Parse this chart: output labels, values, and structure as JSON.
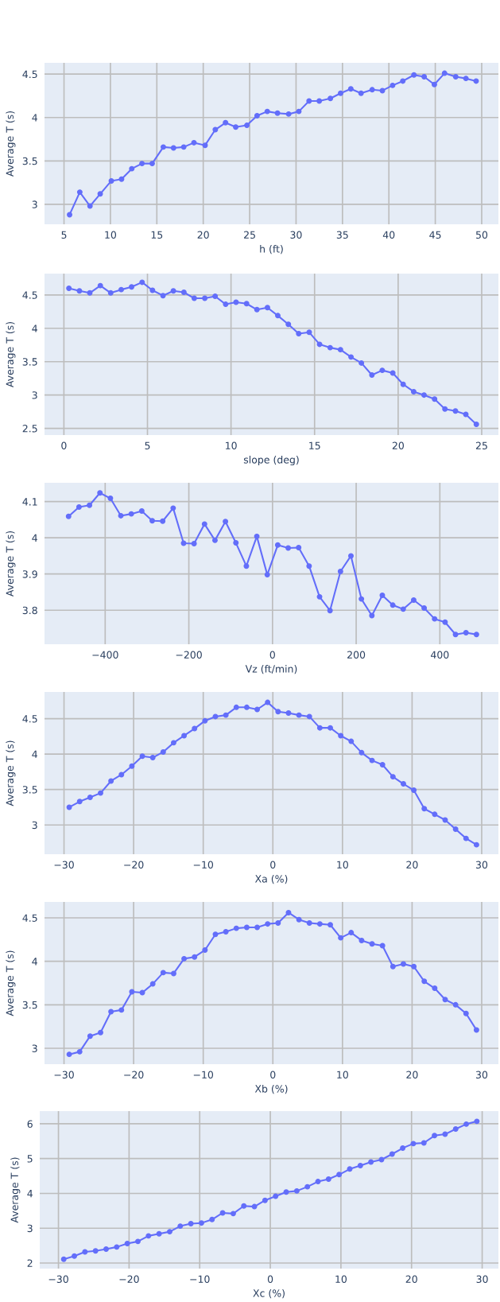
{
  "chart_data": [
    {
      "type": "line",
      "xlabel": "h (ft)",
      "ylabel": "Average T (s)",
      "marker": "circle",
      "line_style": "solid",
      "grid": true,
      "legend": false,
      "xlim": [
        2.9,
        51.8
      ],
      "ylim": [
        2.77,
        4.63
      ],
      "xticks": [
        5,
        10,
        15,
        20,
        25,
        30,
        35,
        40,
        45,
        50
      ],
      "yticks": [
        3,
        3.5,
        4,
        4.5
      ],
      "series": [
        {
          "color": "#636efa",
          "x": [
            5.6,
            6.7,
            7.8,
            8.9,
            10.1,
            11.2,
            12.3,
            13.4,
            14.5,
            15.7,
            16.8,
            17.9,
            19.0,
            20.2,
            21.3,
            22.4,
            23.5,
            24.7,
            25.8,
            26.9,
            28.0,
            29.2,
            30.3,
            31.4,
            32.5,
            33.7,
            34.8,
            35.9,
            37.0,
            38.2,
            39.3,
            40.4,
            41.5,
            42.7,
            43.8,
            44.9,
            46.0,
            47.2,
            48.3,
            49.4
          ],
          "values": [
            2.88,
            3.14,
            2.98,
            3.12,
            3.27,
            3.29,
            3.41,
            3.47,
            3.47,
            3.66,
            3.65,
            3.66,
            3.71,
            3.68,
            3.86,
            3.94,
            3.89,
            3.91,
            4.02,
            4.07,
            4.05,
            4.04,
            4.07,
            4.19,
            4.19,
            4.22,
            4.28,
            4.33,
            4.28,
            4.32,
            4.31,
            4.37,
            4.42,
            4.49,
            4.47,
            4.38,
            4.51,
            4.47,
            4.45,
            4.42
          ]
        }
      ]
    },
    {
      "type": "line",
      "xlabel": "slope (deg)",
      "ylabel": "Average T (s)",
      "marker": "circle",
      "line_style": "solid",
      "grid": true,
      "legend": false,
      "xlim": [
        -1.16,
        26.0
      ],
      "ylim": [
        2.4,
        4.82
      ],
      "xticks": [
        0,
        5,
        10,
        15,
        20,
        25
      ],
      "yticks": [
        2.5,
        3,
        3.5,
        4,
        4.5
      ],
      "series": [
        {
          "color": "#636efa",
          "x": [
            0.3,
            0.93,
            1.55,
            2.18,
            2.8,
            3.43,
            4.05,
            4.68,
            5.3,
            5.93,
            6.55,
            7.18,
            7.8,
            8.43,
            9.05,
            9.68,
            10.3,
            10.93,
            11.55,
            12.18,
            12.8,
            13.43,
            14.05,
            14.68,
            15.3,
            15.93,
            16.55,
            17.18,
            17.8,
            18.43,
            19.05,
            19.68,
            20.3,
            20.93,
            21.55,
            22.18,
            22.8,
            23.43,
            24.05,
            24.68
          ],
          "values": [
            4.6,
            4.56,
            4.53,
            4.64,
            4.53,
            4.58,
            4.62,
            4.69,
            4.57,
            4.49,
            4.56,
            4.54,
            4.45,
            4.45,
            4.48,
            4.36,
            4.39,
            4.37,
            4.28,
            4.31,
            4.19,
            4.06,
            3.92,
            3.94,
            3.76,
            3.71,
            3.68,
            3.57,
            3.48,
            3.3,
            3.37,
            3.33,
            3.16,
            3.05,
            3.0,
            2.94,
            2.79,
            2.76,
            2.71,
            2.56
          ]
        }
      ]
    },
    {
      "type": "line",
      "xlabel": "Vz (ft/min)",
      "ylabel": "Average T (s)",
      "marker": "circle",
      "line_style": "solid",
      "grid": true,
      "legend": false,
      "xlim": [
        -545,
        540
      ],
      "ylim": [
        3.706,
        4.152
      ],
      "xticks": [
        {
          "value": -400,
          "label": "−400"
        },
        {
          "value": -200,
          "label": "−200"
        },
        0,
        200,
        400
      ],
      "yticks": [
        3.8,
        3.9,
        4,
        4.1
      ],
      "series": [
        {
          "color": "#636efa",
          "x": [
            -487.5,
            -462.5,
            -437.5,
            -412.5,
            -387.5,
            -362.5,
            -337.5,
            -312.5,
            -287.5,
            -262.5,
            -237.5,
            -212.5,
            -187.5,
            -162.5,
            -137.5,
            -112.5,
            -87.5,
            -62.5,
            -37.5,
            -12.5,
            12.5,
            37.5,
            62.5,
            87.5,
            112.5,
            137.5,
            162.5,
            187.5,
            212.5,
            237.5,
            262.5,
            287.5,
            312.5,
            337.5,
            362.5,
            387.5,
            412.5,
            437.5,
            462.5,
            487.5
          ],
          "values": [
            4.059,
            4.085,
            4.09,
            4.124,
            4.109,
            4.061,
            4.066,
            4.074,
            4.047,
            4.046,
            4.082,
            3.985,
            3.984,
            4.038,
            3.993,
            4.045,
            3.986,
            3.922,
            4.004,
            3.898,
            3.98,
            3.972,
            3.973,
            3.922,
            3.837,
            3.799,
            3.907,
            3.95,
            3.831,
            3.785,
            3.841,
            3.814,
            3.803,
            3.828,
            3.806,
            3.776,
            3.767,
            3.733,
            3.738,
            3.733
          ]
        }
      ]
    },
    {
      "type": "line",
      "xlabel": "Xa (%)",
      "ylabel": "Average T (s)",
      "marker": "circle",
      "line_style": "solid",
      "grid": true,
      "legend": false,
      "xlim": [
        -32.8,
        32.4
      ],
      "ylim": [
        2.587,
        4.877
      ],
      "xticks": [
        {
          "value": -30,
          "label": "−30"
        },
        {
          "value": -20,
          "label": "−20"
        },
        {
          "value": -10,
          "label": "−10"
        },
        0,
        10,
        20,
        30
      ],
      "yticks": [
        3,
        3.5,
        4,
        4.5
      ],
      "series": [
        {
          "color": "#636efa",
          "x": [
            -29.25,
            -27.75,
            -26.25,
            -24.75,
            -23.25,
            -21.75,
            -20.25,
            -18.75,
            -17.25,
            -15.75,
            -14.25,
            -12.75,
            -11.25,
            -9.75,
            -8.25,
            -6.75,
            -5.25,
            -3.75,
            -2.25,
            -0.75,
            0.75,
            2.25,
            3.75,
            5.25,
            6.75,
            8.25,
            9.75,
            11.25,
            12.75,
            14.25,
            15.75,
            17.25,
            18.75,
            20.25,
            21.75,
            23.25,
            24.75,
            26.25,
            27.75,
            29.25
          ],
          "values": [
            3.25,
            3.33,
            3.39,
            3.45,
            3.62,
            3.71,
            3.83,
            3.97,
            3.95,
            4.03,
            4.16,
            4.26,
            4.36,
            4.47,
            4.53,
            4.55,
            4.66,
            4.66,
            4.63,
            4.73,
            4.6,
            4.58,
            4.55,
            4.53,
            4.37,
            4.37,
            4.26,
            4.18,
            4.02,
            3.91,
            3.85,
            3.68,
            3.58,
            3.49,
            3.23,
            3.15,
            3.07,
            2.94,
            2.81,
            2.72
          ]
        }
      ]
    },
    {
      "type": "line",
      "xlabel": "Xb (%)",
      "ylabel": "Average T (s)",
      "marker": "circle",
      "line_style": "solid",
      "grid": true,
      "legend": false,
      "xlim": [
        -32.8,
        32.4
      ],
      "ylim": [
        2.817,
        4.683
      ],
      "xticks": [
        {
          "value": -30,
          "label": "−30"
        },
        {
          "value": -20,
          "label": "−20"
        },
        {
          "value": -10,
          "label": "−10"
        },
        0,
        10,
        20,
        30
      ],
      "yticks": [
        3,
        3.5,
        4,
        4.5
      ],
      "series": [
        {
          "color": "#636efa",
          "x": [
            -29.25,
            -27.75,
            -26.25,
            -24.75,
            -23.25,
            -21.75,
            -20.25,
            -18.75,
            -17.25,
            -15.75,
            -14.25,
            -12.75,
            -11.25,
            -9.75,
            -8.25,
            -6.75,
            -5.25,
            -3.75,
            -2.25,
            -0.75,
            0.75,
            2.25,
            3.75,
            5.25,
            6.75,
            8.25,
            9.75,
            11.25,
            12.75,
            14.25,
            15.75,
            17.25,
            18.75,
            20.25,
            21.75,
            23.25,
            24.75,
            26.25,
            27.75,
            29.25
          ],
          "values": [
            2.93,
            2.96,
            3.14,
            3.18,
            3.42,
            3.44,
            3.65,
            3.64,
            3.74,
            3.87,
            3.86,
            4.03,
            4.05,
            4.13,
            4.31,
            4.34,
            4.38,
            4.39,
            4.39,
            4.43,
            4.44,
            4.56,
            4.48,
            4.44,
            4.43,
            4.42,
            4.27,
            4.33,
            4.24,
            4.2,
            4.18,
            3.94,
            3.97,
            3.94,
            3.77,
            3.69,
            3.56,
            3.5,
            3.4,
            3.21
          ]
        }
      ]
    },
    {
      "type": "line",
      "xlabel": "Xc (%)",
      "ylabel": "Average T (s)",
      "marker": "circle",
      "line_style": "solid",
      "grid": true,
      "legend": false,
      "xlim": [
        -32.65,
        32.3
      ],
      "ylim": [
        1.84,
        6.364
      ],
      "xticks": [
        {
          "value": -30,
          "label": "−30"
        },
        {
          "value": -20,
          "label": "−20"
        },
        {
          "value": -10,
          "label": "−10"
        },
        0,
        10,
        20,
        30
      ],
      "yticks": [
        2,
        3,
        4,
        5,
        6
      ],
      "series": [
        {
          "color": "#636efa",
          "x": [
            -29.25,
            -27.75,
            -26.25,
            -24.75,
            -23.25,
            -21.75,
            -20.25,
            -18.75,
            -17.25,
            -15.75,
            -14.25,
            -12.75,
            -11.25,
            -9.75,
            -8.25,
            -6.75,
            -5.25,
            -3.75,
            -2.25,
            -0.75,
            0.75,
            2.25,
            3.75,
            5.25,
            6.75,
            8.25,
            9.75,
            11.25,
            12.75,
            14.25,
            15.75,
            17.25,
            18.75,
            20.25,
            21.75,
            23.25,
            24.75,
            26.25,
            27.75,
            29.25
          ],
          "values": [
            2.11,
            2.2,
            2.32,
            2.35,
            2.4,
            2.46,
            2.56,
            2.62,
            2.78,
            2.84,
            2.9,
            3.06,
            3.13,
            3.15,
            3.25,
            3.44,
            3.42,
            3.64,
            3.62,
            3.8,
            3.92,
            4.04,
            4.07,
            4.19,
            4.34,
            4.41,
            4.54,
            4.7,
            4.8,
            4.9,
            4.97,
            5.13,
            5.3,
            5.43,
            5.45,
            5.66,
            5.7,
            5.85,
            5.99,
            6.07
          ]
        }
      ]
    }
  ]
}
